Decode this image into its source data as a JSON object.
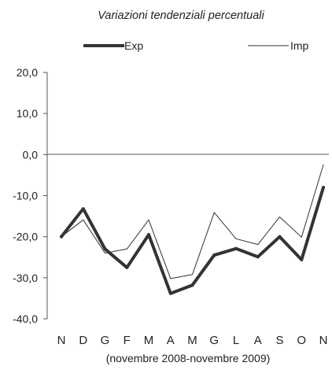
{
  "chart_data": {
    "type": "line",
    "title": "Variazioni tendenziali percentuali",
    "xlabel": "(novembre 2008-novembre 2009)",
    "ylabel": "",
    "categories": [
      "N",
      "D",
      "G",
      "F",
      "M",
      "A",
      "M",
      "G",
      "L",
      "A",
      "S",
      "O",
      "N"
    ],
    "ylim": [
      -40,
      20
    ],
    "yticks": [
      "20,0",
      "10,0",
      "0,0",
      "-10,0",
      "-20,0",
      "-30,0",
      "-40,0"
    ],
    "ytick_values": [
      20,
      10,
      0,
      -10,
      -20,
      -30,
      -40
    ],
    "grid": false,
    "legend_position": "top",
    "series": [
      {
        "name": "Exp",
        "color": "#333333",
        "style": "thick",
        "values": [
          -20.0,
          -13.2,
          -23.0,
          -27.5,
          -19.5,
          -33.8,
          -31.8,
          -24.5,
          -22.9,
          -24.9,
          -20.0,
          -25.6,
          -8.0
        ]
      },
      {
        "name": "Imp",
        "color": "#333333",
        "style": "thin",
        "values": [
          -20.0,
          -15.9,
          -24.0,
          -23.0,
          -15.9,
          -30.2,
          -29.2,
          -14.1,
          -20.5,
          -21.9,
          -15.2,
          -20.1,
          -2.5
        ]
      }
    ]
  }
}
